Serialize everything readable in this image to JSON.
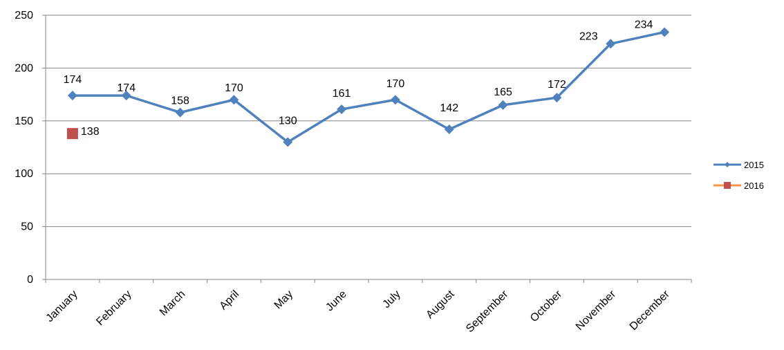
{
  "chart_data": {
    "type": "line",
    "title": "",
    "xlabel": "",
    "ylabel": "",
    "categories": [
      "January",
      "February",
      "March",
      "April",
      "May",
      "June",
      "July",
      "August",
      "September",
      "October",
      "November",
      "December"
    ],
    "ylim": [
      0,
      250
    ],
    "yticks": [
      0,
      50,
      100,
      150,
      200,
      250
    ],
    "grid": true,
    "legend_position": "right",
    "series": [
      {
        "name": "2015",
        "color": "#4F81BD",
        "marker": "diamond",
        "values": [
          174,
          174,
          158,
          170,
          130,
          161,
          170,
          142,
          165,
          172,
          223,
          234
        ],
        "labels": [
          "174",
          "174",
          "158",
          "170",
          "130",
          "161",
          "170",
          "142",
          "165",
          "172",
          "223",
          "234"
        ]
      },
      {
        "name": "2016",
        "color": "#C0504D",
        "line_color": "#F79646",
        "marker": "square",
        "values": [
          138,
          null,
          null,
          null,
          null,
          null,
          null,
          null,
          null,
          null,
          null,
          null
        ],
        "labels": [
          "138"
        ]
      }
    ]
  }
}
